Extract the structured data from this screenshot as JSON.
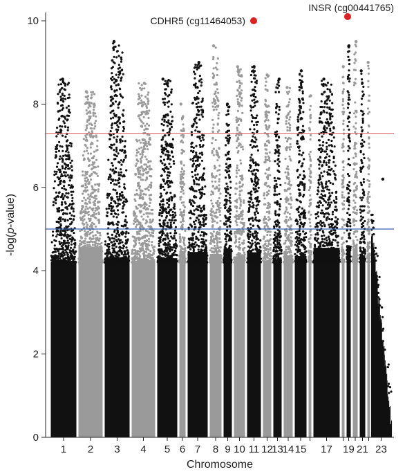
{
  "chart_data": {
    "type": "scatter",
    "subtype": "manhattan",
    "title": "",
    "xlabel": "Chromosome",
    "ylabel_parts": [
      "-log(",
      "p",
      "-value)"
    ],
    "ylim": [
      0,
      10.2
    ],
    "yticks": [
      0,
      2,
      4,
      6,
      8,
      10
    ],
    "grid": false,
    "legend": "none",
    "chromosomes": [
      {
        "id": "1",
        "label": "1",
        "peak": 8.6,
        "color": "#111111"
      },
      {
        "id": "2",
        "label": "2",
        "peak": 8.3,
        "color": "#9a9a9a"
      },
      {
        "id": "3",
        "label": "3",
        "peak": 9.5,
        "color": "#111111"
      },
      {
        "id": "4",
        "label": "4",
        "peak": 8.5,
        "color": "#9a9a9a"
      },
      {
        "id": "5",
        "label": "5",
        "peak": 8.6,
        "color": "#111111"
      },
      {
        "id": "6",
        "label": "6",
        "peak": 8.0,
        "color": "#9a9a9a"
      },
      {
        "id": "7",
        "label": "7",
        "peak": 9.0,
        "color": "#111111"
      },
      {
        "id": "8",
        "label": "8",
        "peak": 9.4,
        "color": "#9a9a9a"
      },
      {
        "id": "9",
        "label": "9",
        "peak": 8.0,
        "color": "#111111"
      },
      {
        "id": "10",
        "label": "10",
        "peak": 8.9,
        "color": "#9a9a9a"
      },
      {
        "id": "11",
        "label": "11",
        "peak": 8.9,
        "color": "#111111"
      },
      {
        "id": "12",
        "label": "12",
        "peak": 8.7,
        "color": "#9a9a9a"
      },
      {
        "id": "13",
        "label": "13",
        "peak": 8.6,
        "color": "#111111"
      },
      {
        "id": "14",
        "label": "14",
        "peak": 8.4,
        "color": "#9a9a9a"
      },
      {
        "id": "15",
        "label": "15",
        "peak": 8.8,
        "color": "#111111"
      },
      {
        "id": "16",
        "label": "",
        "peak": 8.2,
        "color": "#9a9a9a"
      },
      {
        "id": "17",
        "label": "17",
        "peak": 8.6,
        "color": "#111111"
      },
      {
        "id": "18",
        "label": "",
        "peak": 8.9,
        "color": "#9a9a9a"
      },
      {
        "id": "19",
        "label": "19",
        "peak": 9.4,
        "color": "#111111"
      },
      {
        "id": "20",
        "label": "",
        "peak": 9.5,
        "color": "#9a9a9a"
      },
      {
        "id": "21",
        "label": "21",
        "peak": 8.8,
        "color": "#111111"
      },
      {
        "id": "22",
        "label": "",
        "peak": 9.0,
        "color": "#9a9a9a"
      },
      {
        "id": "23",
        "label": "23",
        "peak": 6.2,
        "color": "#111111"
      }
    ],
    "thresholds": [
      {
        "value": 7.3,
        "color": "#e06868"
      },
      {
        "value": 5.0,
        "color": "#3f5fb5"
      }
    ],
    "highlighted": [
      {
        "label": "CDHR5 (cg11464053)",
        "chromosome": "11",
        "y": 10.0,
        "color": "#e02020"
      },
      {
        "label": "INSR (cg00441765)",
        "chromosome": "19",
        "y": 10.1,
        "color": "#e02020"
      }
    ]
  }
}
